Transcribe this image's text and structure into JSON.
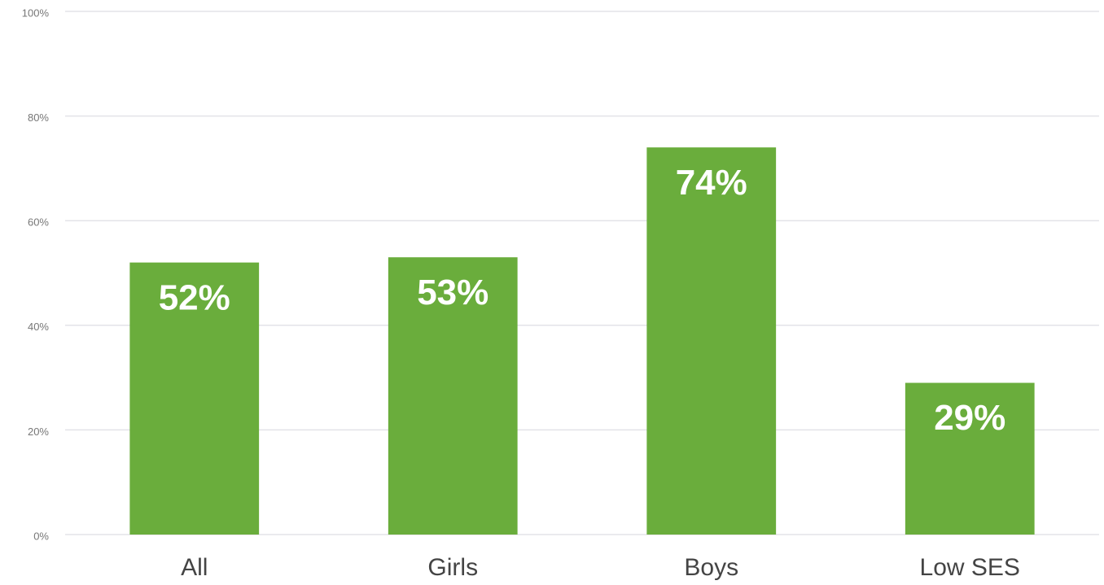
{
  "chart_data": {
    "type": "bar",
    "categories": [
      "All",
      "Girls",
      "Boys",
      "Low SES"
    ],
    "values": [
      52,
      53,
      74,
      29
    ],
    "value_labels": [
      "52%",
      "53%",
      "74%",
      "29%"
    ],
    "color": "#6aad3c",
    "ylim": [
      0,
      100
    ],
    "yticks": [
      {
        "value": 0,
        "label": "0%"
      },
      {
        "value": 20,
        "label": "20%"
      },
      {
        "value": 40,
        "label": "40%"
      },
      {
        "value": 60,
        "label": "60%"
      },
      {
        "value": 80,
        "label": "80%"
      },
      {
        "value": 100,
        "label": "100%"
      }
    ],
    "grid": true
  }
}
